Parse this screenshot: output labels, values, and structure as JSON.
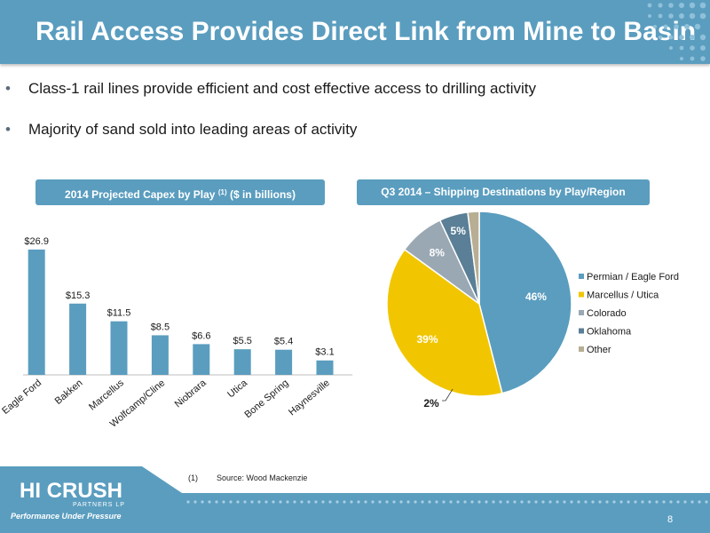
{
  "header": {
    "title": "Rail Access Provides Direct Link from Mine to Basin"
  },
  "bullets": [
    "Class-1 rail lines provide efficient and cost effective access to drilling activity",
    "Majority of sand sold into leading areas of activity"
  ],
  "bullet_mark": "•",
  "left_panel": {
    "title": "2014 Projected Capex by Play",
    "footnote_marker": "(1)",
    "title_suffix": "($ in billions)"
  },
  "right_panel": {
    "title": "Q3 2014 – Shipping Destinations by Play/Region"
  },
  "footnote": {
    "number": "(1)",
    "text": "Source: Wood Mackenzie"
  },
  "footer": {
    "logo_text": "HI CRUSH",
    "logo_sub": "PARTNERS LP",
    "tagline": "Performance Under Pressure",
    "page_number": "8"
  },
  "colors": {
    "header": "#5a9dbf",
    "bar": "#5a9dbf",
    "permian": "#5a9dbf",
    "marcellus": "#f1c600",
    "colorado": "#9aa8b4",
    "oklahoma": "#5a7f96",
    "other": "#b8ae94"
  },
  "chart_data": [
    {
      "type": "bar",
      "categories": [
        "Eagle Ford",
        "Bakken",
        "Marcellus",
        "Wolfcamp/Cline",
        "Niobrara",
        "Utica",
        "Bone Spring",
        "Haynesville"
      ],
      "values": [
        26.9,
        15.3,
        11.5,
        8.5,
        6.6,
        5.5,
        5.4,
        3.1
      ],
      "data_labels": [
        "$26.9",
        "$15.3",
        "$11.5",
        "$8.5",
        "$6.6",
        "$5.5",
        "$5.4",
        "$3.1"
      ],
      "ylim": [
        0,
        28.6
      ],
      "grid": false
    },
    {
      "type": "pie",
      "labels": [
        "Permian / Eagle Ford",
        "Marcellus / Utica",
        "Colorado",
        "Oklahoma",
        "Other"
      ],
      "values": [
        46,
        39,
        8,
        5,
        2
      ],
      "data_labels": [
        "46%",
        "39%",
        "8%",
        "5%",
        "2%"
      ],
      "legend": "right"
    }
  ]
}
